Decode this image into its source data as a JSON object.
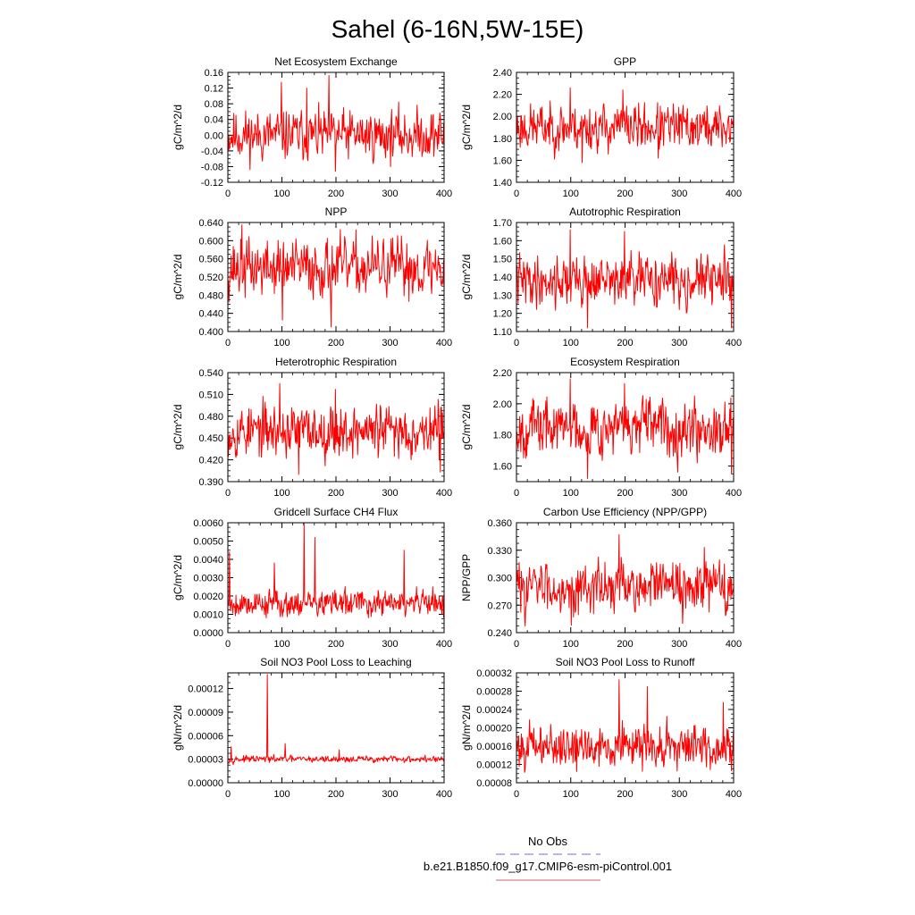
{
  "figure": {
    "title": "Sahel (6-16N,5W-15E)",
    "legend": [
      {
        "label": "No Obs",
        "color": "#6a6ae6",
        "dashed": true
      },
      {
        "label": "b.e21.B1850.f09_g17.CMIP6-esm-piControl.001",
        "color": "#e06060",
        "dashed": false
      }
    ]
  },
  "chart_data": [
    {
      "type": "line",
      "title": "Net Ecosystem Exchange",
      "ylabel": "gC/m^2/d",
      "xlim": [
        0,
        400
      ],
      "ylim": [
        -0.12,
        0.16
      ],
      "xticks": [
        "0",
        "100",
        "200",
        "300",
        "400"
      ],
      "yticks": [
        "-0.12",
        "-0.08",
        "-0.04",
        "0.00",
        "0.04",
        "0.08",
        "0.12",
        "0.16"
      ],
      "series": {
        "name": "b.e21.B1850.f09_g17.CMIP6-esm-piControl.001",
        "color": "#ff0000",
        "mean": 0.0,
        "amp": 0.03,
        "spikes": [
          [
            98,
            0.135
          ],
          [
            186,
            0.152
          ],
          [
            145,
            0.12
          ],
          [
            198,
            -0.092
          ]
        ],
        "seed": 11
      },
      "x": [
        0,
        400
      ]
    },
    {
      "type": "line",
      "title": "GPP",
      "ylabel": "gC/m^2/d",
      "xlim": [
        0,
        400
      ],
      "ylim": [
        1.4,
        2.4
      ],
      "xticks": [
        "0",
        "100",
        "200",
        "300",
        "400"
      ],
      "yticks": [
        "1.40",
        "1.60",
        "1.80",
        "2.00",
        "2.20",
        "2.40"
      ],
      "series": {
        "name": "b.e21.B1850.f09_g17.CMIP6-esm-piControl.001",
        "color": "#ff0000",
        "mean": 1.9,
        "amp": 0.1,
        "spikes": [
          [
            98,
            2.26
          ],
          [
            195,
            2.24
          ],
          [
            120,
            1.58
          ],
          [
            260,
            1.62
          ]
        ],
        "seed": 23
      },
      "x": [
        0,
        400
      ]
    },
    {
      "type": "line",
      "title": "NPP",
      "ylabel": "gC/m^2/d",
      "xlim": [
        0,
        400
      ],
      "ylim": [
        0.4,
        0.64
      ],
      "xticks": [
        "0",
        "100",
        "200",
        "300",
        "400"
      ],
      "yticks": [
        "0.400",
        "0.440",
        "0.480",
        "0.520",
        "0.560",
        "0.600",
        "0.640"
      ],
      "series": {
        "name": "b.e21.B1850.f09_g17.CMIP6-esm-piControl.001",
        "color": "#ff0000",
        "mean": 0.54,
        "amp": 0.03,
        "spikes": [
          [
            25,
            0.635
          ],
          [
            190,
            0.41
          ],
          [
            100,
            0.425
          ]
        ],
        "seed": 37
      },
      "x": [
        0,
        400
      ]
    },
    {
      "type": "line",
      "title": "Autotrophic Respiration",
      "ylabel": "gC/m^2/d",
      "xlim": [
        0,
        400
      ],
      "ylim": [
        1.1,
        1.7
      ],
      "xticks": [
        "0",
        "100",
        "200",
        "300",
        "400"
      ],
      "yticks": [
        "1.10",
        "1.20",
        "1.30",
        "1.40",
        "1.50",
        "1.60",
        "1.70"
      ],
      "series": {
        "name": "b.e21.B1850.f09_g17.CMIP6-esm-piControl.001",
        "color": "#ff0000",
        "mean": 1.38,
        "amp": 0.065,
        "spikes": [
          [
            98,
            1.66
          ],
          [
            198,
            1.65
          ],
          [
            130,
            1.12
          ],
          [
            395,
            1.12
          ]
        ],
        "seed": 41
      },
      "x": [
        0,
        400
      ]
    },
    {
      "type": "line",
      "title": "Heterotrophic Respiration",
      "ylabel": "gC/m^2/d",
      "xlim": [
        0,
        400
      ],
      "ylim": [
        0.39,
        0.54
      ],
      "xticks": [
        "0",
        "100",
        "200",
        "300",
        "400"
      ],
      "yticks": [
        "0.390",
        "0.420",
        "0.450",
        "0.480",
        "0.510",
        "0.540"
      ],
      "series": {
        "name": "b.e21.B1850.f09_g17.CMIP6-esm-piControl.001",
        "color": "#ff0000",
        "mean": 0.46,
        "amp": 0.017,
        "spikes": [
          [
            95,
            0.525
          ],
          [
            198,
            0.517
          ],
          [
            130,
            0.4
          ],
          [
            392,
            0.403
          ]
        ],
        "seed": 53
      },
      "x": [
        0,
        400
      ]
    },
    {
      "type": "line",
      "title": "Ecosystem Respiration",
      "ylabel": "gC/m^2/d",
      "xlim": [
        0,
        400
      ],
      "ylim": [
        1.5,
        2.2
      ],
      "xticks": [
        "0",
        "100",
        "200",
        "300",
        "400"
      ],
      "yticks": [
        "1.60",
        "1.80",
        "2.00",
        "2.20"
      ],
      "series": {
        "name": "b.e21.B1850.f09_g17.CMIP6-esm-piControl.001",
        "color": "#ff0000",
        "mean": 1.85,
        "amp": 0.085,
        "spikes": [
          [
            98,
            2.16
          ],
          [
            198,
            2.13
          ],
          [
            130,
            1.52
          ],
          [
            395,
            1.55
          ]
        ],
        "seed": 67
      },
      "x": [
        0,
        400
      ]
    },
    {
      "type": "line",
      "title": "Gridcell Surface CH4 Flux",
      "ylabel": "gC/m^2/d",
      "xlim": [
        0,
        400
      ],
      "ylim": [
        0.0,
        0.006
      ],
      "xticks": [
        "0",
        "100",
        "200",
        "300",
        "400"
      ],
      "yticks": [
        "0.0000",
        "0.0010",
        "0.0020",
        "0.0030",
        "0.0040",
        "0.0050",
        "0.0060"
      ],
      "series": {
        "name": "b.e21.B1850.f09_g17.CMIP6-esm-piControl.001",
        "color": "#ff0000",
        "mean": 0.0016,
        "amp": 0.00035,
        "spikes": [
          [
            140,
            0.006
          ],
          [
            2,
            0.0044
          ],
          [
            160,
            0.0052
          ],
          [
            325,
            0.0045
          ],
          [
            85,
            0.0038
          ]
        ],
        "seed": 79
      },
      "x": [
        0,
        400
      ]
    },
    {
      "type": "line",
      "title": "Carbon Use Efficiency (NPP/GPP)",
      "ylabel": "NPP/GPP",
      "xlim": [
        0,
        400
      ],
      "ylim": [
        0.24,
        0.36
      ],
      "xticks": [
        "0",
        "100",
        "200",
        "300",
        "400"
      ],
      "yticks": [
        "0.240",
        "0.270",
        "0.300",
        "0.330",
        "0.360"
      ],
      "series": {
        "name": "b.e21.B1850.f09_g17.CMIP6-esm-piControl.001",
        "color": "#ff0000",
        "mean": 0.29,
        "amp": 0.013,
        "spikes": [
          [
            188,
            0.347
          ],
          [
            345,
            0.333
          ],
          [
            100,
            0.248
          ],
          [
            305,
            0.25
          ]
        ],
        "seed": 83
      },
      "x": [
        0,
        400
      ]
    },
    {
      "type": "line",
      "title": "Soil NO3 Pool Loss to Leaching",
      "ylabel": "gN/m^2/d",
      "xlim": [
        0,
        400
      ],
      "ylim": [
        0.0,
        0.00014
      ],
      "xticks": [
        "0",
        "100",
        "200",
        "300",
        "400"
      ],
      "yticks": [
        "0.00000",
        "0.00003",
        "0.00006",
        "0.00009",
        "0.00012"
      ],
      "series": {
        "name": "b.e21.B1850.f09_g17.CMIP6-esm-piControl.001",
        "color": "#ff0000",
        "mean": 3e-05,
        "amp": 2e-06,
        "spikes": [
          [
            72,
            0.000138
          ],
          [
            5,
            4.6e-05
          ],
          [
            105,
            5e-05
          ],
          [
            205,
            4.2e-05
          ]
        ],
        "seed": 97
      },
      "x": [
        0,
        400
      ]
    },
    {
      "type": "line",
      "title": "Soil NO3 Pool Loss to Runoff",
      "ylabel": "gN/m^2/d",
      "xlim": [
        0,
        400
      ],
      "ylim": [
        8e-05,
        0.00032
      ],
      "xticks": [
        "0",
        "100",
        "200",
        "300",
        "400"
      ],
      "yticks": [
        "0.00008",
        "0.00012",
        "0.00016",
        "0.00020",
        "0.00024",
        "0.00028",
        "0.00032"
      ],
      "series": {
        "name": "b.e21.B1850.f09_g17.CMIP6-esm-piControl.001",
        "color": "#ff0000",
        "mean": 0.00016,
        "amp": 2.2e-05,
        "spikes": [
          [
            188,
            0.000305
          ],
          [
            240,
            0.00029
          ],
          [
            380,
            0.000255
          ],
          [
            110,
            0.000105
          ]
        ],
        "seed": 101
      },
      "x": [
        0,
        400
      ]
    }
  ]
}
